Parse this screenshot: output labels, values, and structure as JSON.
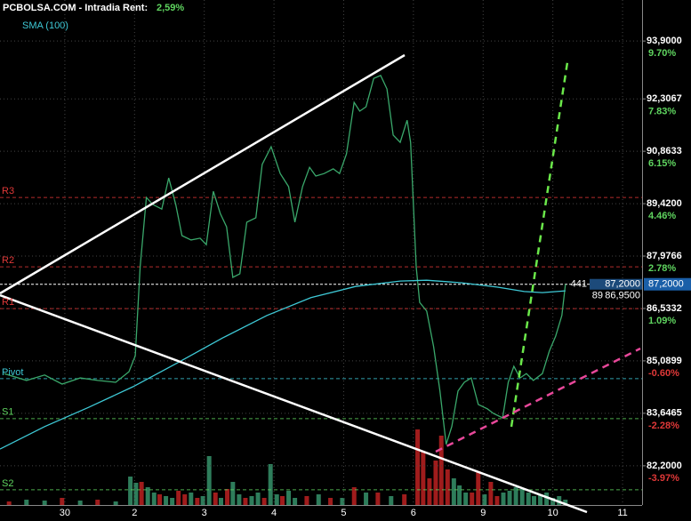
{
  "chart_data": {
    "type": "line",
    "title": "PCBOLSA.COM - Intradia",
    "subtitle_label": "Rent:",
    "subtitle_value": "2,59%",
    "xlim": [
      -0.93,
      8.28
    ],
    "ylim": [
      81.12,
      95.03
    ],
    "y2lim": [
      -5.23,
      11.02
    ],
    "xticks": [
      {
        "value": 0,
        "label": "30"
      },
      {
        "value": 1,
        "label": "2"
      },
      {
        "value": 2,
        "label": "3"
      },
      {
        "value": 3,
        "label": "4"
      },
      {
        "value": 4,
        "label": "5"
      },
      {
        "value": 5,
        "label": "6"
      },
      {
        "value": 6,
        "label": "9"
      },
      {
        "value": 7,
        "label": "10"
      },
      {
        "value": 8,
        "label": "11"
      }
    ],
    "yticks": [
      {
        "value": 93.9,
        "label": "93,9000"
      },
      {
        "value": 92.3067,
        "label": "92,3067"
      },
      {
        "value": 90.8633,
        "label": "90,8633"
      },
      {
        "value": 89.42,
        "label": "89,4200"
      },
      {
        "value": 87.9766,
        "label": "87,9766"
      },
      {
        "value": 86.5332,
        "label": "86,5332"
      },
      {
        "value": 85.0899,
        "label": "85,0899"
      },
      {
        "value": 83.6465,
        "label": "83,6465"
      },
      {
        "value": 82.2,
        "label": "82,2000"
      }
    ],
    "y2ticks": [
      {
        "value": 9.7,
        "label": "9.70%"
      },
      {
        "value": 7.83,
        "label": "7.83%"
      },
      {
        "value": 6.15,
        "label": "6.15%"
      },
      {
        "value": 4.46,
        "label": "4.46%"
      },
      {
        "value": 2.78,
        "label": "2.78%"
      },
      {
        "value": 1.09,
        "label": "1.09%"
      },
      {
        "value": -0.6,
        "label": "-0.60%"
      },
      {
        "value": -2.28,
        "label": "-2.28%"
      },
      {
        "value": -3.97,
        "label": "-3.97%"
      }
    ],
    "grid": true,
    "series": [
      {
        "color": "#3aa86b",
        "x": [
          -0.87,
          -0.55,
          -0.29,
          -0.04,
          0.22,
          0.47,
          0.73,
          0.92,
          1.01,
          1.08,
          1.17,
          1.26,
          1.39,
          1.49,
          1.59,
          1.68,
          1.81,
          1.94,
          2.03,
          2.13,
          2.23,
          2.32,
          2.41,
          2.51,
          2.61,
          2.74,
          2.83,
          2.96,
          3.09,
          3.21,
          3.3,
          3.41,
          3.51,
          3.6,
          3.72,
          3.85,
          3.94,
          4.04,
          4.15,
          4.23,
          4.32,
          4.43,
          4.53,
          4.62,
          4.71,
          4.81,
          4.91,
          4.96,
          5.04,
          5.09,
          5.19,
          5.29,
          5.38,
          5.47,
          5.55,
          5.64,
          5.73,
          5.83,
          5.93,
          6.06,
          6.15,
          6.28,
          6.36,
          6.44,
          6.53,
          6.62,
          6.72,
          6.85,
          6.95,
          7.04,
          7.13,
          7.18
        ],
        "values": [
          84.74,
          84.55,
          84.7,
          84.45,
          84.62,
          84.55,
          84.5,
          84.79,
          85.23,
          87.68,
          89.59,
          89.4,
          89.27,
          90.13,
          89.4,
          88.54,
          88.42,
          88.47,
          88.29,
          89.76,
          89.15,
          88.78,
          87.39,
          87.49,
          88.91,
          89.03,
          90.5,
          90.99,
          90.25,
          89.89,
          88.91,
          89.89,
          90.42,
          90.18,
          90.25,
          90.38,
          90.25,
          90.79,
          92.21,
          91.97,
          92.09,
          92.87,
          92.95,
          92.58,
          91.31,
          91.11,
          91.72,
          91.11,
          87.68,
          86.7,
          86.46,
          85.48,
          84.26,
          82.79,
          83.28,
          84.26,
          84.5,
          84.62,
          83.89,
          83.77,
          83.64,
          83.52,
          84.5,
          84.94,
          84.62,
          84.74,
          84.55,
          84.74,
          85.36,
          85.77,
          86.34,
          87.2
        ]
      },
      {
        "name": "SMA (100)",
        "color": "#3ec9d6",
        "x": [
          -0.93,
          -0.29,
          0.34,
          0.98,
          1.62,
          2.26,
          2.9,
          3.53,
          4.17,
          4.81,
          5.19,
          5.7,
          6.21,
          6.59,
          6.85,
          7.18
        ],
        "values": [
          82.66,
          83.28,
          83.81,
          84.38,
          85.04,
          85.72,
          86.34,
          86.83,
          87.14,
          87.29,
          87.31,
          87.24,
          87.12,
          87.0,
          86.97,
          87.02
        ]
      }
    ],
    "levels": [
      {
        "name": "R3",
        "value": 89.59,
        "color": "#e03838"
      },
      {
        "name": "R2",
        "value": 87.68,
        "color": "#e03838"
      },
      {
        "name": "R1",
        "value": 86.53,
        "color": "#e03838"
      },
      {
        "name": "Pivot",
        "value": 84.6,
        "color": "#3ec9d6"
      },
      {
        "name": "S1",
        "value": 83.5,
        "color": "#5fd45f"
      },
      {
        "name": "S2",
        "value": 81.54,
        "color": "#5fd45f"
      }
    ],
    "last": {
      "value": 87.2,
      "label": "87,2000"
    },
    "order_book": {
      "bid_size": "441",
      "bid": "87,2000",
      "ask_size": "89",
      "ask": "86,9500"
    },
    "volume": {
      "ylim": [
        0,
        100
      ],
      "x": [
        -0.8,
        -0.55,
        -0.29,
        -0.04,
        0.22,
        0.47,
        0.73,
        0.94,
        1.02,
        1.1,
        1.19,
        1.28,
        1.36,
        1.45,
        1.54,
        1.63,
        1.72,
        1.81,
        1.9,
        1.98,
        2.07,
        2.16,
        2.24,
        2.33,
        2.41,
        2.5,
        2.59,
        2.68,
        2.77,
        2.86,
        2.95,
        3.04,
        3.12,
        3.21,
        3.3,
        3.47,
        3.64,
        3.81,
        3.98,
        4.15,
        4.32,
        4.49,
        4.68,
        4.87,
        5.06,
        5.14,
        5.23,
        5.32,
        5.4,
        5.49,
        5.58,
        5.66,
        5.75,
        5.84,
        5.93,
        6.02,
        6.11,
        6.2,
        6.29,
        6.38,
        6.47,
        6.56,
        6.65,
        6.73,
        6.82,
        6.91,
        7.0,
        7.09,
        7.18
      ],
      "values": [
        4,
        6,
        5,
        8,
        5,
        6,
        4,
        32,
        25,
        26,
        20,
        14,
        12,
        10,
        8,
        16,
        12,
        14,
        8,
        10,
        55,
        14,
        8,
        18,
        26,
        12,
        8,
        10,
        14,
        8,
        46,
        12,
        10,
        16,
        8,
        10,
        12,
        8,
        8,
        20,
        14,
        14,
        10,
        12,
        85,
        60,
        30,
        50,
        78,
        40,
        30,
        22,
        14,
        14,
        38,
        12,
        26,
        10,
        14,
        16,
        20,
        18,
        14,
        10,
        12,
        14,
        8,
        10,
        6
      ],
      "colors": [
        "#a01c1c",
        "#2e7d5b",
        "#2e7d5b",
        "#a01c1c",
        "#2e7d5b",
        "#a01c1c",
        "#2e7d5b",
        "#2e7d5b",
        "#2e7d5b",
        "#a01c1c",
        "#2e7d5b",
        "#2e7d5b",
        "#a01c1c",
        "#2e7d5b",
        "#2e7d5b",
        "#a01c1c",
        "#a01c1c",
        "#2e7d5b",
        "#a01c1c",
        "#2e7d5b",
        "#2e7d5b",
        "#a01c1c",
        "#2e7d5b",
        "#a01c1c",
        "#2e7d5b",
        "#2e7d5b",
        "#a01c1c",
        "#2e7d5b",
        "#2e7d5b",
        "#a01c1c",
        "#2e7d5b",
        "#2e7d5b",
        "#a01c1c",
        "#2e7d5b",
        "#2e7d5b",
        "#a01c1c",
        "#2e7d5b",
        "#a01c1c",
        "#2e7d5b",
        "#a01c1c",
        "#2e7d5b",
        "#a01c1c",
        "#2e7d5b",
        "#a01c1c",
        "#a01c1c",
        "#a01c1c",
        "#a01c1c",
        "#a01c1c",
        "#a01c1c",
        "#a01c1c",
        "#2e7d5b",
        "#2e7d5b",
        "#2e7d5b",
        "#a01c1c",
        "#a01c1c",
        "#2e7d5b",
        "#a01c1c",
        "#a01c1c",
        "#2e7d5b",
        "#2e7d5b",
        "#2e7d5b",
        "#2e7d5b",
        "#2e7d5b",
        "#2e7d5b",
        "#2e7d5b",
        "#2e7d5b",
        "#2e7d5b",
        "#2e7d5b",
        "#2e7d5b"
      ]
    }
  }
}
